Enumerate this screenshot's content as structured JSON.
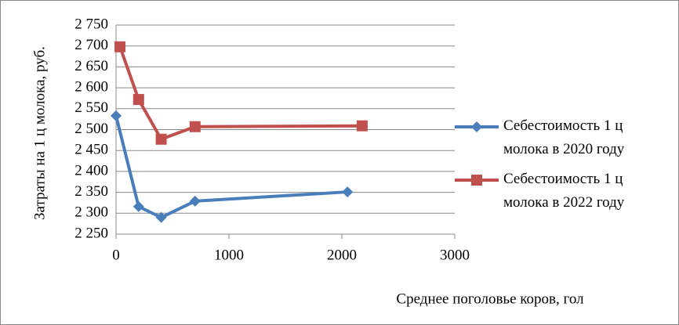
{
  "chart_data": {
    "type": "line",
    "x_label": "Среднее поголовье коров, гол",
    "y_label": "Затраты на 1 ц молока, руб.",
    "series": [
      {
        "name": "Себестоимость 1 ц молока в 2020 году",
        "color": "#4a7ebb",
        "marker": "diamond",
        "x": [
          0,
          200,
          400,
          700,
          2050
        ],
        "values": [
          2533,
          2316,
          2290,
          2329,
          2351
        ]
      },
      {
        "name": "Себестоимость 1 ц молока в 2022 году",
        "color": "#c0504d",
        "marker": "square",
        "x": [
          35,
          200,
          400,
          700,
          2180
        ],
        "values": [
          2698,
          2572,
          2477,
          2507,
          2509
        ]
      }
    ],
    "xlim": [
      0,
      3000
    ],
    "xticks": [
      0,
      1000,
      2000,
      3000
    ],
    "ylim": [
      2250,
      2750
    ],
    "yticks": [
      {
        "value": 2250,
        "label": "2 250"
      },
      {
        "value": 2300,
        "label": "2 300"
      },
      {
        "value": 2350,
        "label": "2 350"
      },
      {
        "value": 2400,
        "label": "2 400"
      },
      {
        "value": 2450,
        "label": "2 450"
      },
      {
        "value": 2500,
        "label": "2 500"
      },
      {
        "value": 2550,
        "label": "2 550"
      },
      {
        "value": 2600,
        "label": "2 600"
      },
      {
        "value": 2650,
        "label": "2 650"
      },
      {
        "value": 2700,
        "label": "2 700"
      },
      {
        "value": 2750,
        "label": "2 750"
      }
    ],
    "grid": true,
    "legend": "right"
  }
}
